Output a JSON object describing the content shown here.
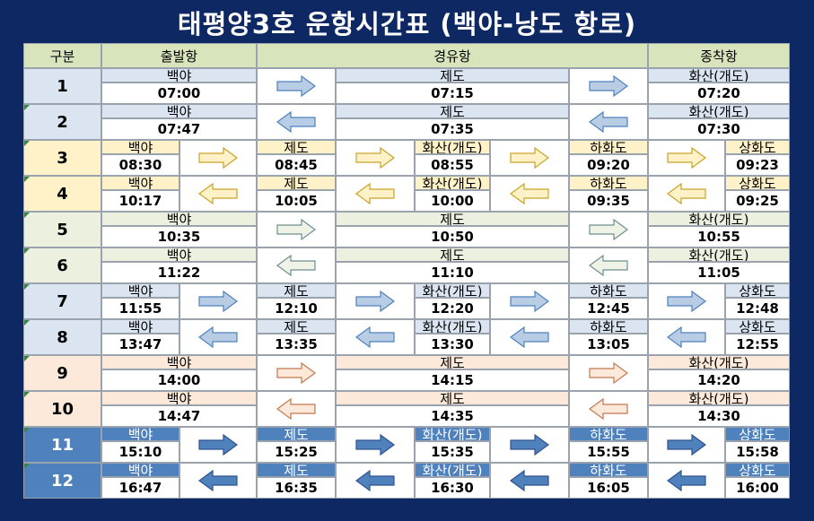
{
  "title": "태평양3호 운항시간표 (백야-낭도 항로)",
  "headers": [
    "구분",
    "출발항",
    "경유항",
    "종착항"
  ],
  "colors": {
    "background": "#0e2864",
    "header": "#d8e4bc",
    "group_blue": "#dbe5f1",
    "group_yellow": "#fff2c8",
    "group_green": "#ebf1de",
    "group_peach": "#fde9d9",
    "group_dark": "#4f81bd"
  },
  "rows": [
    {
      "no": "1",
      "type": "short",
      "group": "blue",
      "dir": "right",
      "stops": [
        {
          "name": "백야",
          "time": "07:00"
        },
        {
          "name": "제도",
          "time": "07:15"
        },
        {
          "name": "화산(개도)",
          "time": "07:20"
        }
      ]
    },
    {
      "no": "2",
      "type": "short",
      "group": "blue",
      "dir": "left",
      "stops": [
        {
          "name": "백야",
          "time": "07:47"
        },
        {
          "name": "제도",
          "time": "07:35"
        },
        {
          "name": "화산(개도)",
          "time": "07:30"
        }
      ]
    },
    {
      "no": "3",
      "type": "long",
      "group": "yellow",
      "dir": "right",
      "stops": [
        {
          "name": "백야",
          "time": "08:30"
        },
        {
          "name": "제도",
          "time": "08:45"
        },
        {
          "name": "화산(개도)",
          "time": "08:55"
        },
        {
          "name": "하화도",
          "time": "09:20"
        },
        {
          "name": "상화도",
          "time": "09:23"
        }
      ]
    },
    {
      "no": "4",
      "type": "long",
      "group": "yellow",
      "dir": "left",
      "stops": [
        {
          "name": "백야",
          "time": "10:17"
        },
        {
          "name": "제도",
          "time": "10:05"
        },
        {
          "name": "화산(개도)",
          "time": "10:00"
        },
        {
          "name": "하화도",
          "time": "09:35"
        },
        {
          "name": "상화도",
          "time": "09:25"
        }
      ]
    },
    {
      "no": "5",
      "type": "short",
      "group": "green",
      "dir": "right",
      "stops": [
        {
          "name": "백야",
          "time": "10:35"
        },
        {
          "name": "제도",
          "time": "10:50"
        },
        {
          "name": "화산(개도)",
          "time": "10:55"
        }
      ]
    },
    {
      "no": "6",
      "type": "short",
      "group": "green",
      "dir": "left",
      "stops": [
        {
          "name": "백야",
          "time": "11:22"
        },
        {
          "name": "제도",
          "time": "11:10"
        },
        {
          "name": "화산(개도)",
          "time": "11:05"
        }
      ]
    },
    {
      "no": "7",
      "type": "long",
      "group": "blue",
      "dir": "right",
      "stops": [
        {
          "name": "백야",
          "time": "11:55"
        },
        {
          "name": "제도",
          "time": "12:10"
        },
        {
          "name": "화산(개도)",
          "time": "12:20"
        },
        {
          "name": "하화도",
          "time": "12:45"
        },
        {
          "name": "상화도",
          "time": "12:48"
        }
      ]
    },
    {
      "no": "8",
      "type": "long",
      "group": "blue",
      "dir": "left",
      "stops": [
        {
          "name": "백야",
          "time": "13:47"
        },
        {
          "name": "제도",
          "time": "13:35"
        },
        {
          "name": "화산(개도)",
          "time": "13:30"
        },
        {
          "name": "하화도",
          "time": "13:05"
        },
        {
          "name": "상화도",
          "time": "12:55"
        }
      ]
    },
    {
      "no": "9",
      "type": "short",
      "group": "peach",
      "dir": "right",
      "stops": [
        {
          "name": "백야",
          "time": "14:00"
        },
        {
          "name": "제도",
          "time": "14:15"
        },
        {
          "name": "화산(개도)",
          "time": "14:20"
        }
      ]
    },
    {
      "no": "10",
      "type": "short",
      "group": "peach",
      "dir": "left",
      "stops": [
        {
          "name": "백야",
          "time": "14:47"
        },
        {
          "name": "제도",
          "time": "14:35"
        },
        {
          "name": "화산(개도)",
          "time": "14:30"
        }
      ]
    },
    {
      "no": "11",
      "type": "long",
      "group": "dark",
      "dir": "right",
      "stops": [
        {
          "name": "백야",
          "time": "15:10"
        },
        {
          "name": "제도",
          "time": "15:25"
        },
        {
          "name": "화산(개도)",
          "time": "15:35"
        },
        {
          "name": "하화도",
          "time": "15:55"
        },
        {
          "name": "상화도",
          "time": "15:58"
        }
      ]
    },
    {
      "no": "12",
      "type": "long",
      "group": "dark",
      "dir": "left",
      "stops": [
        {
          "name": "백야",
          "time": "16:47"
        },
        {
          "name": "제도",
          "time": "16:35"
        },
        {
          "name": "화산(개도)",
          "time": "16:30"
        },
        {
          "name": "하화도",
          "time": "16:05"
        },
        {
          "name": "상화도",
          "time": "16:00"
        }
      ]
    }
  ]
}
